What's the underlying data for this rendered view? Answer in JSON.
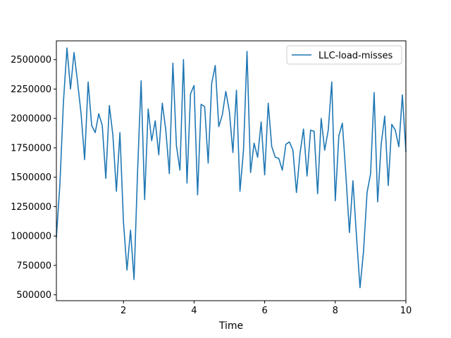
{
  "chart_data": {
    "type": "line",
    "title": "",
    "xlabel": "Time",
    "ylabel": "",
    "xlim": [
      0.1,
      10
    ],
    "ylim": [
      450000,
      2660000
    ],
    "grid": false,
    "legend_position": "top-right",
    "x_ticks": [
      {
        "value": 2,
        "label": "2"
      },
      {
        "value": 4,
        "label": "4"
      },
      {
        "value": 6,
        "label": "6"
      },
      {
        "value": 8,
        "label": "8"
      },
      {
        "value": 10,
        "label": "10"
      }
    ],
    "y_ticks": [
      {
        "value": 500000,
        "label": "500000"
      },
      {
        "value": 750000,
        "label": "750000"
      },
      {
        "value": 1000000,
        "label": "1000000"
      },
      {
        "value": 1250000,
        "label": "1250000"
      },
      {
        "value": 1500000,
        "label": "1500000"
      },
      {
        "value": 1750000,
        "label": "1750000"
      },
      {
        "value": 2000000,
        "label": "2000000"
      },
      {
        "value": 2250000,
        "label": "2250000"
      },
      {
        "value": 2500000,
        "label": "2500000"
      }
    ],
    "series": [
      {
        "name": "LLC-load-misses",
        "color": "#1f77b4",
        "x": [
          0.1,
          0.2,
          0.3,
          0.4,
          0.5,
          0.6,
          0.7,
          0.8,
          0.9,
          1.0,
          1.1,
          1.2,
          1.3,
          1.4,
          1.5,
          1.6,
          1.7,
          1.8,
          1.9,
          2.0,
          2.1,
          2.2,
          2.3,
          2.4,
          2.5,
          2.6,
          2.7,
          2.8,
          2.9,
          3.0,
          3.1,
          3.2,
          3.3,
          3.4,
          3.5,
          3.6,
          3.7,
          3.8,
          3.9,
          4.0,
          4.1,
          4.2,
          4.3,
          4.4,
          4.5,
          4.6,
          4.7,
          4.8,
          4.9,
          5.0,
          5.1,
          5.2,
          5.3,
          5.4,
          5.5,
          5.6,
          5.7,
          5.8,
          5.9,
          6.0,
          6.1,
          6.2,
          6.3,
          6.4,
          6.5,
          6.6,
          6.7,
          6.8,
          6.9,
          7.0,
          7.1,
          7.2,
          7.3,
          7.4,
          7.5,
          7.6,
          7.7,
          7.8,
          7.9,
          8.0,
          8.1,
          8.2,
          8.3,
          8.4,
          8.5,
          8.6,
          8.7,
          8.8,
          8.9,
          9.0,
          9.1,
          9.2,
          9.3,
          9.4,
          9.5,
          9.6,
          9.7,
          9.8,
          9.9,
          10.0
        ],
        "values": [
          990000,
          1440000,
          2140000,
          2600000,
          2250000,
          2560000,
          2310000,
          2040000,
          1650000,
          2310000,
          1940000,
          1880000,
          2040000,
          1940000,
          1490000,
          2110000,
          1860000,
          1380000,
          1880000,
          1120000,
          710000,
          1050000,
          630000,
          1550000,
          2320000,
          1310000,
          2080000,
          1810000,
          1980000,
          1690000,
          2130000,
          1900000,
          1530000,
          2470000,
          1770000,
          1560000,
          2500000,
          1450000,
          2210000,
          2280000,
          1350000,
          2120000,
          2100000,
          1620000,
          2300000,
          2450000,
          1930000,
          2030000,
          2230000,
          2060000,
          1710000,
          2240000,
          1380000,
          1730000,
          2570000,
          1540000,
          1790000,
          1670000,
          1970000,
          1520000,
          2130000,
          1760000,
          1670000,
          1660000,
          1560000,
          1780000,
          1800000,
          1730000,
          1370000,
          1700000,
          1910000,
          1510000,
          1900000,
          1890000,
          1360000,
          2000000,
          1730000,
          1900000,
          2310000,
          1300000,
          1850000,
          1960000,
          1520000,
          1030000,
          1470000,
          1000000,
          560000,
          870000,
          1370000,
          1530000,
          2220000,
          1290000,
          1780000,
          2020000,
          1430000,
          1950000,
          1900000,
          1760000,
          2200000,
          1720000
        ]
      }
    ]
  }
}
